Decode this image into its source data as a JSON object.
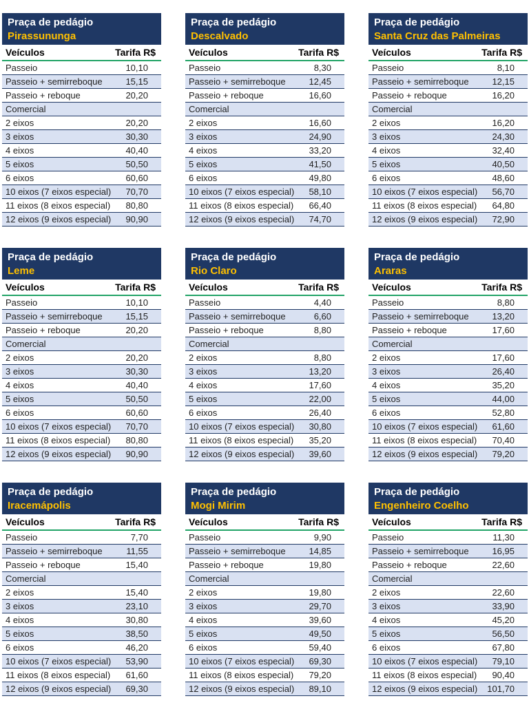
{
  "page": {
    "background": "#ffffff",
    "description_title": "Toll plaza tariff tables"
  },
  "card_title": "Praça de pedágio",
  "columns": {
    "vehicle": "Veículos",
    "tariff": "Tarifa R$"
  },
  "row_labels": [
    "Passeio",
    "Passeio + semirreboque",
    "Passeio + reboque",
    "Comercial",
    "2 eixos",
    "3 eixos",
    "4 eixos",
    "5 eixos",
    "6 eixos",
    "10 eixos (7 eixos especial)",
    "11 eixos (8 eixos especial)",
    "12 eixos (9 eixos especial)"
  ],
  "plazas": [
    {
      "name": "Pirassununga",
      "tariffs": [
        "10,10",
        "15,15",
        "20,20",
        "",
        "20,20",
        "30,30",
        "40,40",
        "50,50",
        "60,60",
        "70,70",
        "80,80",
        "90,90"
      ]
    },
    {
      "name": "Descalvado",
      "tariffs": [
        "8,30",
        "12,45",
        "16,60",
        "",
        "16,60",
        "24,90",
        "33,20",
        "41,50",
        "49,80",
        "58,10",
        "66,40",
        "74,70"
      ]
    },
    {
      "name": "Santa Cruz das Palmeiras",
      "tariffs": [
        "8,10",
        "12,15",
        "16,20",
        "",
        "16,20",
        "24,30",
        "32,40",
        "40,50",
        "48,60",
        "56,70",
        "64,80",
        "72,90"
      ]
    },
    {
      "name": "Leme",
      "tariffs": [
        "10,10",
        "15,15",
        "20,20",
        "",
        "20,20",
        "30,30",
        "40,40",
        "50,50",
        "60,60",
        "70,70",
        "80,80",
        "90,90"
      ]
    },
    {
      "name": "Rio Claro",
      "tariffs": [
        "4,40",
        "6,60",
        "8,80",
        "",
        "8,80",
        "13,20",
        "17,60",
        "22,00",
        "26,40",
        "30,80",
        "35,20",
        "39,60"
      ]
    },
    {
      "name": "Araras",
      "tariffs": [
        "8,80",
        "13,20",
        "17,60",
        "",
        "17,60",
        "26,40",
        "35,20",
        "44,00",
        "52,80",
        "61,60",
        "70,40",
        "79,20"
      ]
    },
    {
      "name": "Iracemápolis",
      "tariffs": [
        "7,70",
        "11,55",
        "15,40",
        "",
        "15,40",
        "23,10",
        "30,80",
        "38,50",
        "46,20",
        "53,90",
        "61,60",
        "69,30"
      ]
    },
    {
      "name": "Mogi Mirim",
      "tariffs": [
        "9,90",
        "14,85",
        "19,80",
        "",
        "19,80",
        "29,70",
        "39,60",
        "49,50",
        "59,40",
        "69,30",
        "79,20",
        "89,10"
      ]
    },
    {
      "name": "Engenheiro Coelho",
      "tariffs": [
        "11,30",
        "16,95",
        "22,60",
        "",
        "22,60",
        "33,90",
        "45,20",
        "56,50",
        "67,80",
        "79,10",
        "90,40",
        "101,70"
      ]
    }
  ],
  "colors": {
    "header_background": "#1F3864",
    "header_title_text": "#FFFFFF",
    "plaza_name_text": "#FFC000",
    "alt_row_background": "#D9E1F2",
    "header_underline_green": "#21A366",
    "row_border": "#1F3864",
    "body_text": "#1F1F1F"
  }
}
